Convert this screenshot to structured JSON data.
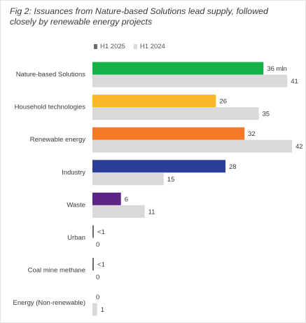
{
  "title": "Fig 2: Issuances from Nature-based Solutions lead supply, followed closely by renewable energy projects",
  "legend": {
    "h1_2025": "H1 2025",
    "h1_2024": "H1 2024"
  },
  "colors": {
    "h1_2024": "#d9d9d9",
    "h1_2025_legend": "#6b6b6b",
    "small_bar": "#6b6b6b"
  },
  "chart_data": {
    "type": "bar",
    "orientation": "horizontal",
    "title": "Fig 2: Issuances from Nature-based Solutions lead supply, followed closely by renewable energy projects",
    "categories": [
      "Nature-based Solutions",
      "Household technologies",
      "Renewable energy",
      "Industry",
      "Waste",
      "Urban",
      "Coal mine methane",
      "Energy (Non-renewable)"
    ],
    "series": [
      {
        "name": "H1 2025",
        "values": [
          36,
          26,
          32,
          28,
          6,
          0.3,
          0.3,
          0
        ],
        "labels": [
          "36 mln",
          "26",
          "32",
          "28",
          "6",
          "<1",
          "<1",
          "0"
        ],
        "colors": [
          "#15b24a",
          "#fbb82b",
          "#f47a26",
          "#2b3f96",
          "#5b2586",
          "#6b6b6b",
          "#6b6b6b",
          "#6b6b6b"
        ]
      },
      {
        "name": "H1 2024",
        "values": [
          41,
          35,
          42,
          15,
          11,
          0,
          0,
          1
        ],
        "labels": [
          "41",
          "35",
          "42",
          "15",
          "11",
          "0",
          "0",
          "1"
        ],
        "color": "#d9d9d9"
      }
    ],
    "xlim": [
      0,
      42
    ],
    "grid": false,
    "legend_position": "top-left"
  }
}
